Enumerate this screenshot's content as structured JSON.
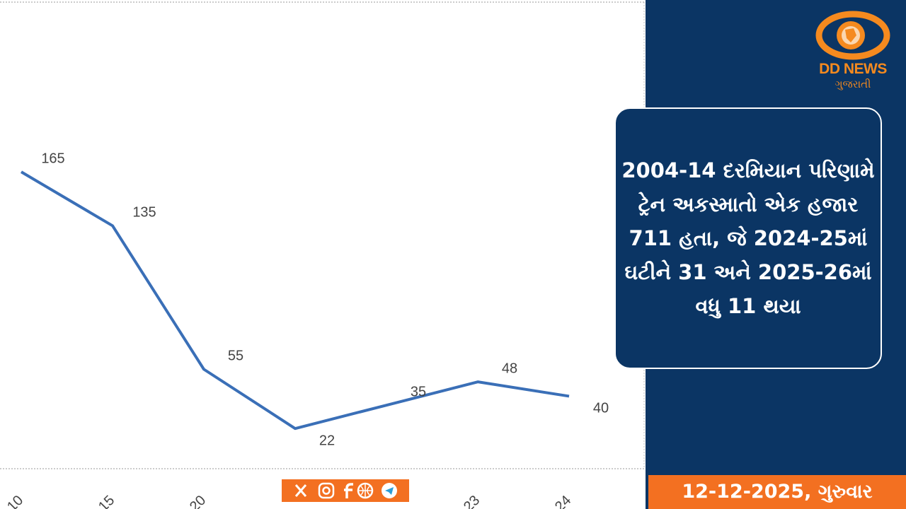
{
  "chart_data": {
    "type": "line",
    "categories": [
      "10",
      "15",
      "20",
      null,
      null,
      "23",
      "24"
    ],
    "series": [
      {
        "color": "#3a6fb7",
        "values": [
          165,
          135,
          55,
          22,
          35,
          48,
          40
        ]
      }
    ],
    "ylim": [
      0,
      260
    ]
  },
  "branding": {
    "name": "DD NEWS",
    "subtitle": "ગુજરાતી"
  },
  "headline": "2004-14 દરમિયાન પરિણામે ટ્રેન અકસ્માતો એક હજાર 711 હતા, જે 2024-25માં ઘટીને 31 અને 2025-26માં વધુ 11 થયા",
  "date": "12-12-2025, ગુરુવાર"
}
